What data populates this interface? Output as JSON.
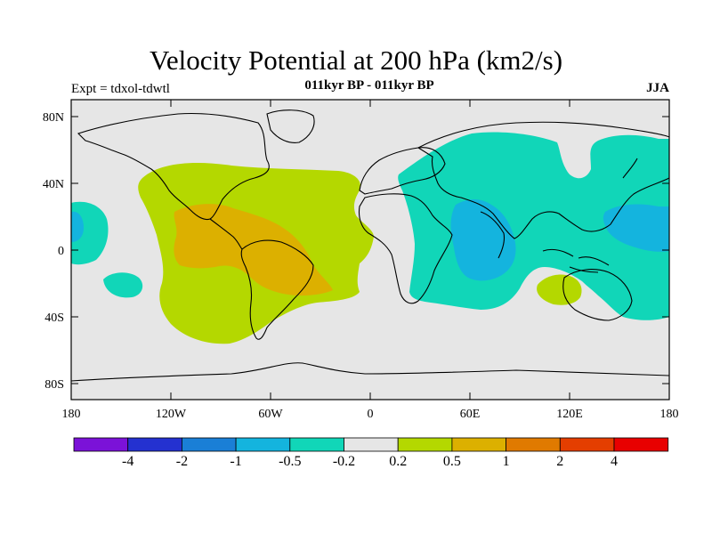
{
  "title": "Velocity Potential at 200 hPa (km2/s)",
  "subtitle": "011kyr BP - 011kyr BP",
  "experiment": "Expt = tdxol-tdwtl",
  "season": "JJA",
  "map": {
    "lat_labels": [
      "80N",
      "40N",
      "0",
      "40S",
      "80S"
    ],
    "lon_labels": [
      "180",
      "120W",
      "60W",
      "0",
      "60E",
      "120E",
      "180"
    ],
    "lon_range": [
      -180,
      180
    ],
    "lat_range": [
      -90,
      90
    ]
  },
  "colorbar": {
    "labels": [
      "-4",
      "-2",
      "-1",
      "-0.5",
      "-0.2",
      "0.2",
      "0.5",
      "1",
      "2",
      "4"
    ],
    "colors": [
      "#7b12d8",
      "#2431d0",
      "#1a7fd6",
      "#14b4de",
      "#11d6b8",
      "#e6e6e6",
      "#b4d800",
      "#dcb000",
      "#e07a00",
      "#e43e00",
      "#e80000"
    ]
  },
  "chart_data": {
    "type": "heatmap",
    "title": "Velocity Potential at 200 hPa (km2/s)",
    "variable": "200 hPa velocity potential difference",
    "units": "km2/s",
    "levels": [
      -4,
      -2,
      -1,
      -0.5,
      -0.2,
      0.2,
      0.5,
      1,
      2,
      4
    ],
    "regions": [
      {
        "name": "Americas/Atlantic positive",
        "range": "0.2 to 0.5"
      },
      {
        "name": "Central/South America core",
        "range": "0.5 to 1"
      },
      {
        "name": "Eurasia/Indian Ocean negative",
        "range": "-0.5 to -0.2"
      },
      {
        "name": "Arabian Sea/Indian Ocean core",
        "range": "-1 to -0.5"
      },
      {
        "name": "Western Pacific core",
        "range": "-1 to -0.5"
      }
    ]
  }
}
